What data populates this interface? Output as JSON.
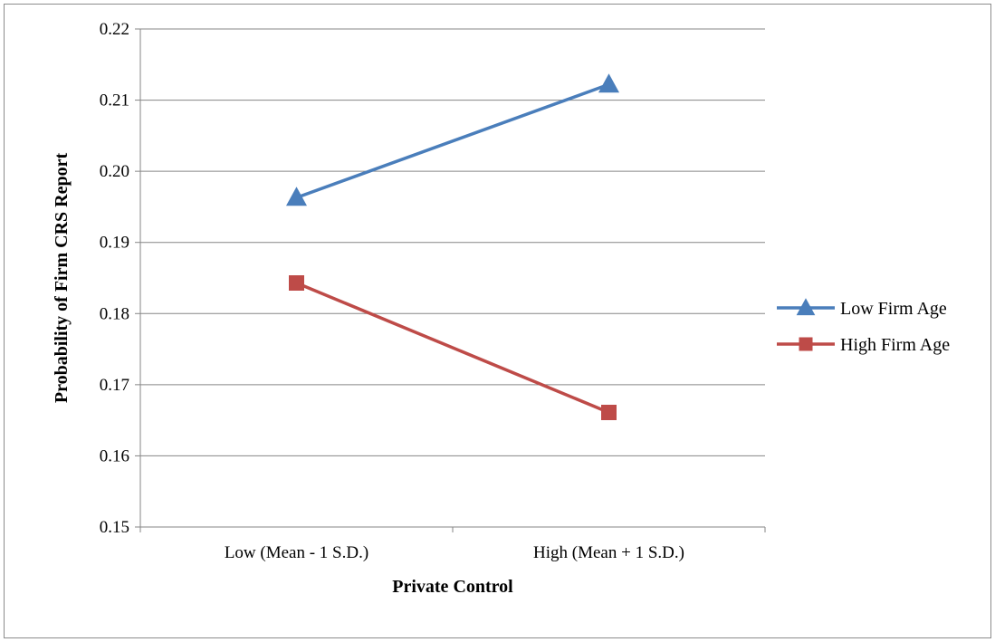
{
  "chart_data": {
    "type": "line",
    "title": "",
    "xlabel": "Private Control",
    "ylabel": "Probability of Firm CRS Report",
    "categories": [
      "Low (Mean - 1 S.D.)",
      "High (Mean + 1 S.D.)"
    ],
    "ylim": [
      0.15,
      0.22
    ],
    "yticks": [
      "0.15",
      "0.16",
      "0.17",
      "0.18",
      "0.19",
      "0.20",
      "0.21",
      "0.22"
    ],
    "grid": true,
    "legend_position": "right",
    "series": [
      {
        "name": "Low Firm Age",
        "values": [
          0.1963,
          0.2122
        ],
        "color": "#4a7ebb",
        "marker": "triangle"
      },
      {
        "name": "High Firm Age",
        "values": [
          0.1843,
          0.1661
        ],
        "color": "#be4b48",
        "marker": "square"
      }
    ]
  }
}
